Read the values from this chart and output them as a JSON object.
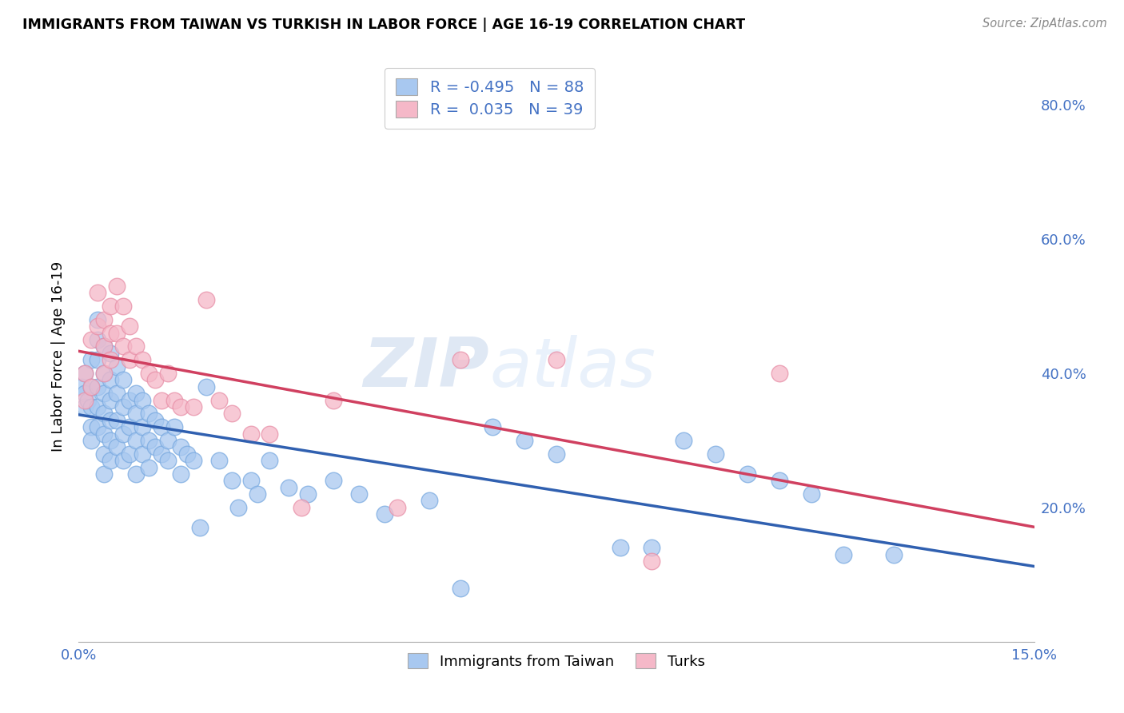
{
  "title": "IMMIGRANTS FROM TAIWAN VS TURKISH IN LABOR FORCE | AGE 16-19 CORRELATION CHART",
  "source": "Source: ZipAtlas.com",
  "ylabel": "In Labor Force | Age 16-19",
  "xlim": [
    0.0,
    0.15
  ],
  "ylim": [
    0.0,
    0.85
  ],
  "taiwan_color": "#a8c8f0",
  "taiwan_edge": "#7aaae0",
  "turk_color": "#f5b8c8",
  "turk_edge": "#e890a8",
  "trend_taiwan_color": "#3060b0",
  "trend_turk_color": "#d04060",
  "taiwan_R": -0.495,
  "taiwan_N": 88,
  "turk_R": 0.035,
  "turk_N": 39,
  "watermark": "ZIPatlas",
  "taiwan_x": [
    0.0005,
    0.001,
    0.001,
    0.001,
    0.0015,
    0.002,
    0.002,
    0.002,
    0.002,
    0.002,
    0.003,
    0.003,
    0.003,
    0.003,
    0.003,
    0.003,
    0.004,
    0.004,
    0.004,
    0.004,
    0.004,
    0.004,
    0.004,
    0.005,
    0.005,
    0.005,
    0.005,
    0.005,
    0.005,
    0.006,
    0.006,
    0.006,
    0.006,
    0.007,
    0.007,
    0.007,
    0.007,
    0.008,
    0.008,
    0.008,
    0.009,
    0.009,
    0.009,
    0.009,
    0.01,
    0.01,
    0.01,
    0.011,
    0.011,
    0.011,
    0.012,
    0.012,
    0.013,
    0.013,
    0.014,
    0.014,
    0.015,
    0.016,
    0.016,
    0.017,
    0.018,
    0.019,
    0.02,
    0.022,
    0.024,
    0.025,
    0.027,
    0.028,
    0.03,
    0.033,
    0.036,
    0.04,
    0.044,
    0.048,
    0.055,
    0.06,
    0.065,
    0.07,
    0.075,
    0.085,
    0.09,
    0.095,
    0.1,
    0.105,
    0.11,
    0.115,
    0.12,
    0.128
  ],
  "taiwan_y": [
    0.38,
    0.4,
    0.37,
    0.35,
    0.36,
    0.42,
    0.38,
    0.35,
    0.32,
    0.3,
    0.48,
    0.45,
    0.42,
    0.38,
    0.35,
    0.32,
    0.44,
    0.4,
    0.37,
    0.34,
    0.31,
    0.28,
    0.25,
    0.43,
    0.39,
    0.36,
    0.33,
    0.3,
    0.27,
    0.41,
    0.37,
    0.33,
    0.29,
    0.39,
    0.35,
    0.31,
    0.27,
    0.36,
    0.32,
    0.28,
    0.37,
    0.34,
    0.3,
    0.25,
    0.36,
    0.32,
    0.28,
    0.34,
    0.3,
    0.26,
    0.33,
    0.29,
    0.32,
    0.28,
    0.3,
    0.27,
    0.32,
    0.29,
    0.25,
    0.28,
    0.27,
    0.17,
    0.38,
    0.27,
    0.24,
    0.2,
    0.24,
    0.22,
    0.27,
    0.23,
    0.22,
    0.24,
    0.22,
    0.19,
    0.21,
    0.08,
    0.32,
    0.3,
    0.28,
    0.14,
    0.14,
    0.3,
    0.28,
    0.25,
    0.24,
    0.22,
    0.13,
    0.13
  ],
  "turk_x": [
    0.001,
    0.001,
    0.002,
    0.002,
    0.003,
    0.003,
    0.004,
    0.004,
    0.004,
    0.005,
    0.005,
    0.005,
    0.006,
    0.006,
    0.007,
    0.007,
    0.008,
    0.008,
    0.009,
    0.01,
    0.011,
    0.012,
    0.013,
    0.014,
    0.015,
    0.016,
    0.018,
    0.02,
    0.022,
    0.024,
    0.027,
    0.03,
    0.035,
    0.04,
    0.05,
    0.06,
    0.075,
    0.09,
    0.11
  ],
  "turk_y": [
    0.4,
    0.36,
    0.45,
    0.38,
    0.52,
    0.47,
    0.48,
    0.44,
    0.4,
    0.5,
    0.46,
    0.42,
    0.53,
    0.46,
    0.5,
    0.44,
    0.47,
    0.42,
    0.44,
    0.42,
    0.4,
    0.39,
    0.36,
    0.4,
    0.36,
    0.35,
    0.35,
    0.51,
    0.36,
    0.34,
    0.31,
    0.31,
    0.2,
    0.36,
    0.2,
    0.42,
    0.42,
    0.12,
    0.4
  ]
}
